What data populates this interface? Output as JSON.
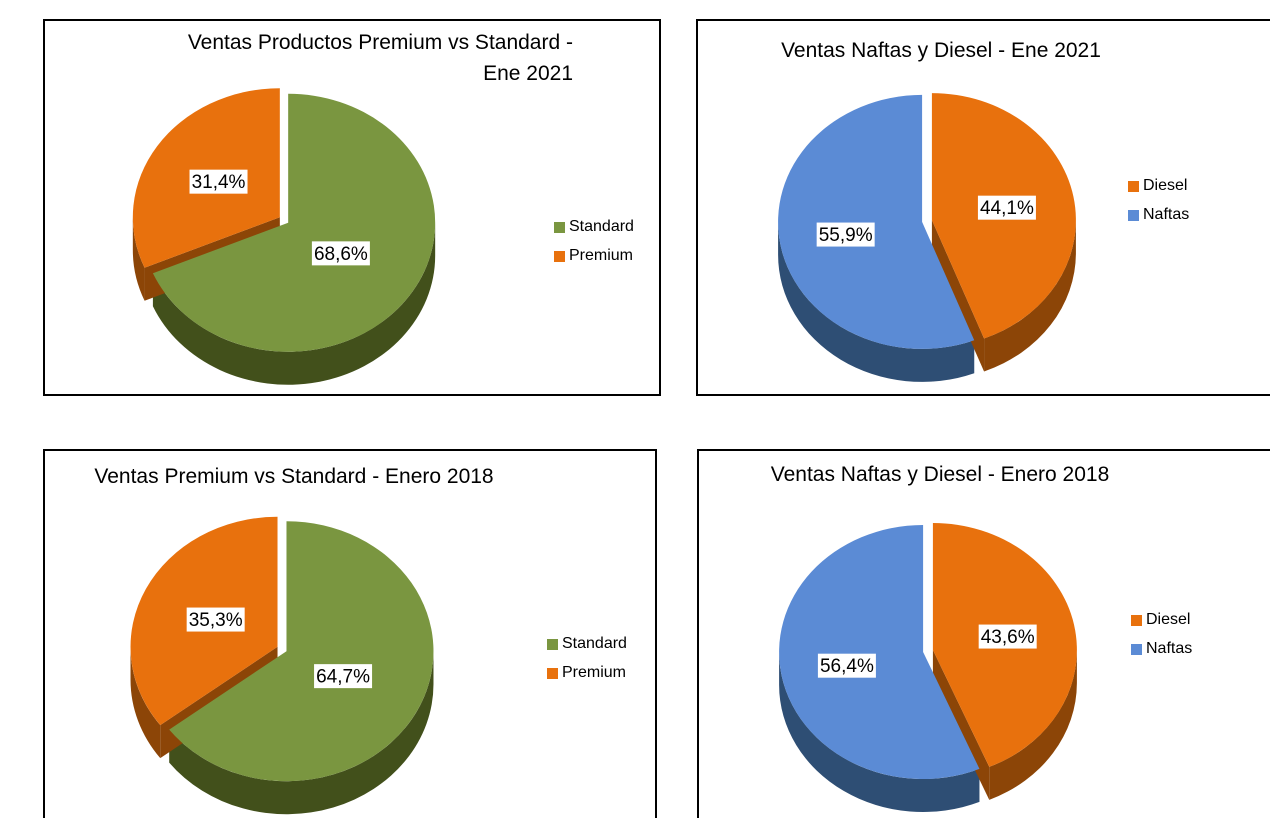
{
  "page": {
    "background": "#ffffff"
  },
  "chart_data": [
    {
      "type": "pie",
      "title_lines": [
        "Ventas Productos Premium vs Standard -",
        "Ene 2021"
      ],
      "legend_position": "right",
      "slices": [
        {
          "label": "Standard",
          "value": 68.6,
          "display": "68,6%",
          "color": "#7A9640",
          "side_color": "#42501B"
        },
        {
          "label": "Premium",
          "value": 31.4,
          "display": "31,4%",
          "color": "#E8710D",
          "side_color": "#8C4507"
        }
      ]
    },
    {
      "type": "pie",
      "title_lines": [
        "Ventas Naftas y Diesel - Ene 2021"
      ],
      "legend_position": "right",
      "slices": [
        {
          "label": "Diesel",
          "value": 44.1,
          "display": "44,1%",
          "color": "#E8710D",
          "side_color": "#8C4507"
        },
        {
          "label": "Naftas",
          "value": 55.9,
          "display": "55,9%",
          "color": "#5B8BD5",
          "side_color": "#2E4E74"
        }
      ]
    },
    {
      "type": "pie",
      "title_lines": [
        "Ventas Premium vs Standard - Enero 2018"
      ],
      "legend_position": "right",
      "slices": [
        {
          "label": "Standard",
          "value": 64.7,
          "display": "64,7%",
          "color": "#7A9640",
          "side_color": "#42501B"
        },
        {
          "label": "Premium",
          "value": 35.3,
          "display": "35,3%",
          "color": "#E8710D",
          "side_color": "#8C4507"
        }
      ]
    },
    {
      "type": "pie",
      "title_lines": [
        "Ventas Naftas y Diesel - Enero 2018"
      ],
      "legend_position": "right",
      "slices": [
        {
          "label": "Diesel",
          "value": 43.6,
          "display": "43,6%",
          "color": "#E8710D",
          "side_color": "#8C4507"
        },
        {
          "label": "Naftas",
          "value": 56.4,
          "display": "56,4%",
          "color": "#5B8BD5",
          "side_color": "#2E4E74"
        }
      ]
    }
  ]
}
